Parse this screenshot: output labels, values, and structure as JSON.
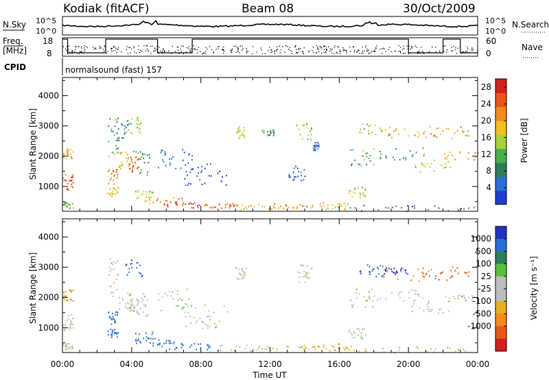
{
  "header": {
    "station": "Kodiak (fitACF)",
    "beam": "Beam 08",
    "date": "30/Oct/2009"
  },
  "strip": {
    "nsky_label": "N.Sky",
    "nsky_ticks": [
      "10^5",
      "10^0"
    ],
    "nsearch_label": "N.Search",
    "nsearch_ticks": [
      "10^5",
      "10^0"
    ],
    "freq_label_1": "Freq.",
    "freq_label_2": "[MHz]",
    "freq_ticks": [
      "18",
      "8"
    ],
    "nave_label": "Nave",
    "nave_ticks": [
      "60",
      "0"
    ],
    "cpid_label": "CPID",
    "cpid_value": "normalsound (fast) 157"
  },
  "colors": {
    "power_scale": [
      "#1f3fd1",
      "#2a6fd6",
      "#2e7d5a",
      "#48b04a",
      "#a8d23a",
      "#f0c020",
      "#f58a1c",
      "#e8561a",
      "#d4201a"
    ],
    "velocity_scale": [
      "#2233bb",
      "#2a6fd6",
      "#2e7d5a",
      "#58c03c",
      "#bdbdbd",
      "#bdbdbd",
      "#e8b020",
      "#f58a1c",
      "#e85818",
      "#d4201a"
    ]
  },
  "chart_data": [
    {
      "type": "heatmap",
      "title": "Power",
      "ylabel": "Slant Range [km]",
      "ylim": [
        180,
        4600
      ],
      "yticks": [
        1000,
        2000,
        3000,
        4000
      ],
      "x_ticks": [
        "00:00",
        "04:00",
        "08:00",
        "12:00",
        "16:00",
        "20:00",
        "00:00"
      ],
      "xlim_hours": [
        0,
        24
      ],
      "colorbar_label": "Power [dB]",
      "colorbar_ticks": [
        "4",
        "8",
        "12",
        "16",
        "20",
        "24",
        "28"
      ],
      "colorbar_range": [
        0,
        30
      ],
      "cells": [
        [
          0.0,
          0.6,
          900,
          1500,
          24
        ],
        [
          0.0,
          0.6,
          1900,
          2300,
          20
        ],
        [
          0.0,
          0.6,
          300,
          500,
          12
        ],
        [
          2.6,
          3.2,
          1100,
          1600,
          22
        ],
        [
          2.6,
          3.2,
          700,
          1000,
          18
        ],
        [
          2.6,
          3.2,
          2000,
          3300,
          10
        ],
        [
          3.2,
          4.0,
          1600,
          2200,
          18
        ],
        [
          3.0,
          3.8,
          2400,
          3200,
          8
        ],
        [
          3.8,
          4.4,
          1500,
          2000,
          24
        ],
        [
          3.6,
          4.6,
          2700,
          3300,
          14
        ],
        [
          4.0,
          5.0,
          1400,
          2200,
          10
        ],
        [
          4.2,
          5.2,
          500,
          900,
          16
        ],
        [
          5.0,
          7.0,
          400,
          700,
          22
        ],
        [
          6.0,
          8.0,
          300,
          500,
          26
        ],
        [
          5.5,
          7.5,
          1500,
          2300,
          6
        ],
        [
          7.0,
          9.5,
          1000,
          1800,
          4
        ],
        [
          8.0,
          10.0,
          300,
          450,
          24
        ],
        [
          10.0,
          13.0,
          250,
          450,
          20
        ],
        [
          12.0,
          15.0,
          300,
          450,
          22
        ],
        [
          10.0,
          10.6,
          2600,
          3000,
          16
        ],
        [
          11.5,
          12.2,
          2700,
          2900,
          10
        ],
        [
          13.5,
          14.5,
          2500,
          3100,
          14
        ],
        [
          14.5,
          14.8,
          2200,
          2500,
          4
        ],
        [
          13.0,
          14.0,
          1200,
          1700,
          4
        ],
        [
          15.0,
          16.8,
          250,
          500,
          18
        ],
        [
          16.5,
          17.5,
          600,
          1000,
          16
        ],
        [
          16.6,
          18.0,
          1700,
          2300,
          12
        ],
        [
          17.0,
          19.0,
          2700,
          3100,
          14
        ],
        [
          18.5,
          21.5,
          2600,
          3000,
          22
        ],
        [
          21.5,
          23.5,
          2600,
          3000,
          20
        ],
        [
          18.0,
          21.0,
          1900,
          2300,
          10
        ],
        [
          20.0,
          22.5,
          1500,
          1900,
          16
        ],
        [
          22.0,
          24.0,
          1900,
          2200,
          20
        ],
        [
          16.5,
          24.0,
          200,
          400,
          6
        ]
      ]
    },
    {
      "type": "heatmap",
      "title": "Velocity",
      "ylabel": "Slant Range [km]",
      "ylim": [
        180,
        4600
      ],
      "yticks": [
        1000,
        2000,
        3000,
        4000
      ],
      "x_ticks": [
        "00:00",
        "04:00",
        "08:00",
        "12:00",
        "16:00",
        "20:00",
        "00:00"
      ],
      "xlabel": "Time UT",
      "xlim_hours": [
        0,
        24
      ],
      "colorbar_label": "Velocity [m s⁻¹]",
      "colorbar_ticks": [
        "1000",
        "500",
        "100",
        "25",
        "-25",
        "-100",
        "-500",
        "-1000"
      ],
      "cells": [
        [
          0.0,
          0.6,
          900,
          1500,
          0
        ],
        [
          0.0,
          0.6,
          1900,
          2300,
          -100
        ],
        [
          0.0,
          0.6,
          300,
          500,
          0
        ],
        [
          2.6,
          3.2,
          1100,
          1600,
          100
        ],
        [
          2.6,
          3.2,
          700,
          1000,
          200
        ],
        [
          2.6,
          3.2,
          2000,
          3300,
          0
        ],
        [
          3.2,
          4.0,
          1600,
          2200,
          0
        ],
        [
          3.8,
          4.4,
          1500,
          2000,
          0
        ],
        [
          3.6,
          4.6,
          2700,
          3300,
          150
        ],
        [
          4.0,
          5.0,
          1400,
          2200,
          0
        ],
        [
          4.2,
          5.2,
          500,
          900,
          200
        ],
        [
          5.0,
          7.0,
          400,
          700,
          150
        ],
        [
          6.0,
          8.5,
          300,
          500,
          300
        ],
        [
          5.5,
          7.5,
          1500,
          2300,
          0
        ],
        [
          7.0,
          9.5,
          1000,
          1800,
          0
        ],
        [
          8.5,
          12.0,
          250,
          450,
          0
        ],
        [
          12.0,
          15.0,
          300,
          450,
          -50
        ],
        [
          10.0,
          10.6,
          2600,
          3000,
          0
        ],
        [
          13.5,
          14.5,
          2500,
          3100,
          0
        ],
        [
          15.0,
          16.8,
          250,
          500,
          -80
        ],
        [
          16.5,
          17.5,
          600,
          1000,
          0
        ],
        [
          16.6,
          18.0,
          1700,
          2300,
          0
        ],
        [
          17.0,
          18.5,
          2700,
          3100,
          150
        ],
        [
          18.5,
          21.5,
          2550,
          3000,
          -300
        ],
        [
          21.5,
          23.5,
          2550,
          3050,
          -400
        ],
        [
          18.0,
          21.0,
          1900,
          2300,
          0
        ],
        [
          20.0,
          22.5,
          1500,
          1900,
          0
        ],
        [
          22.0,
          24.0,
          1900,
          2200,
          0
        ],
        [
          18.5,
          20.0,
          2800,
          3000,
          600
        ],
        [
          16.5,
          24.0,
          200,
          400,
          -40
        ]
      ]
    }
  ]
}
